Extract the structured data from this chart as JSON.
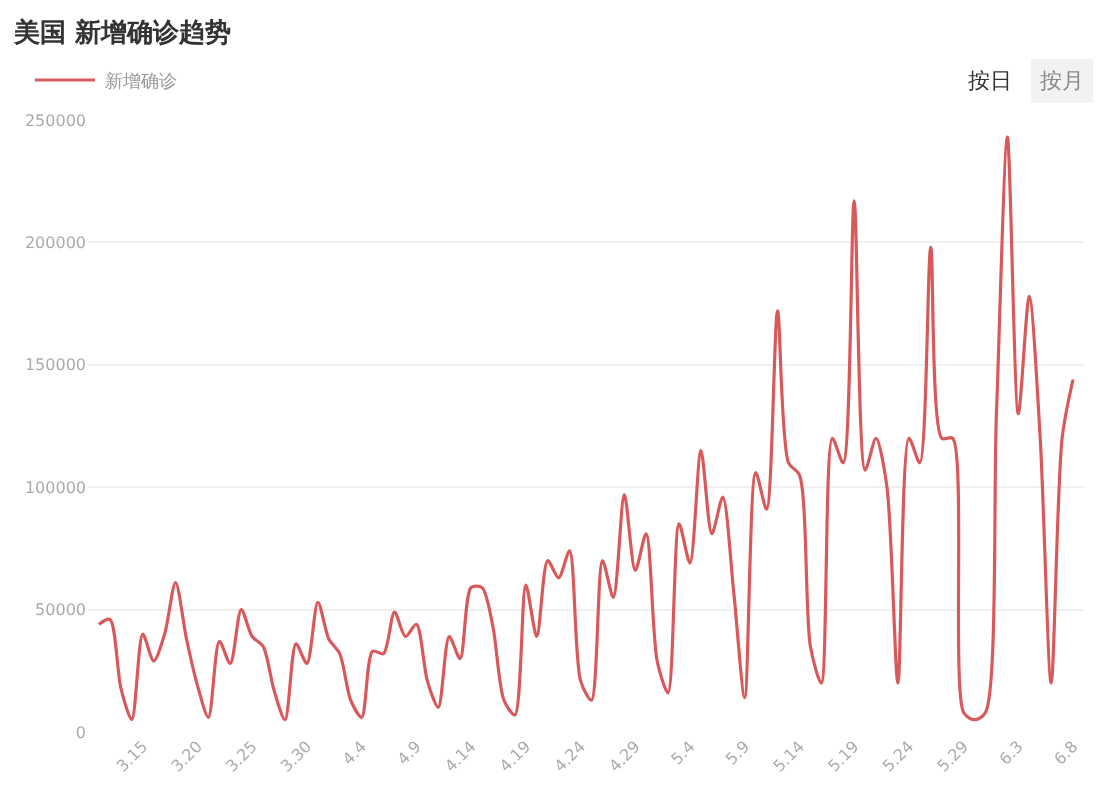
{
  "chart_data": {
    "type": "line",
    "title": "美国 新增确诊趋势",
    "x": [
      "--03-11",
      "--03-12",
      "--03-13",
      "--03-14",
      "--03-15",
      "--03-16",
      "--03-17",
      "--03-18",
      "--03-19",
      "--03-20",
      "--03-21",
      "--03-22",
      "--03-23",
      "--03-24",
      "--03-25",
      "--03-26",
      "--03-27",
      "--03-28",
      "--03-29",
      "--03-30",
      "--03-31",
      "--04-01",
      "--04-02",
      "--04-03",
      "--04-04",
      "--04-05",
      "--04-06",
      "--04-07",
      "--04-08",
      "--04-09",
      "--04-10",
      "--04-11",
      "--04-12",
      "--04-13",
      "--04-14",
      "--04-15",
      "--04-16",
      "--04-17",
      "--04-18",
      "--04-19",
      "--04-20",
      "--04-21",
      "--04-22",
      "--04-23",
      "--04-24",
      "--04-25",
      "--04-26",
      "--04-27",
      "--04-28",
      "--04-29",
      "--04-30",
      "--05-01",
      "--05-02",
      "--05-03",
      "--05-04",
      "--05-05",
      "--05-06",
      "--05-07",
      "--05-08",
      "--05-09",
      "--05-10",
      "--05-11",
      "--05-12",
      "--05-13",
      "--05-14",
      "--05-15",
      "--05-16",
      "--05-17",
      "--05-18",
      "--05-19",
      "--05-20",
      "--05-21",
      "--05-22",
      "--05-23",
      "--05-24",
      "--05-25",
      "--05-26",
      "--05-27",
      "--05-28",
      "--05-29",
      "--05-30",
      "--05-31",
      "--06-01",
      "--06-02",
      "--06-03",
      "--06-04",
      "--06-05",
      "--06-06",
      "--06-07",
      "--06-08"
    ],
    "series": [
      {
        "name": "新增确诊",
        "color": "#d9595b",
        "values": [
          44000,
          46000,
          18000,
          5000,
          40000,
          29000,
          40000,
          61000,
          38000,
          19000,
          6000,
          37000,
          28000,
          50000,
          39000,
          35000,
          17000,
          5000,
          36000,
          28000,
          53000,
          38000,
          32000,
          13000,
          6000,
          33000,
          32000,
          49000,
          39000,
          44000,
          21000,
          10000,
          39000,
          30000,
          59000,
          59000,
          43000,
          13000,
          7000,
          60000,
          39000,
          70000,
          63000,
          74000,
          21000,
          13000,
          70000,
          55000,
          97000,
          66000,
          81000,
          29000,
          16000,
          85000,
          69000,
          115000,
          81000,
          96000,
          57000,
          14000,
          106000,
          91000,
          172000,
          110000,
          105000,
          35000,
          20000,
          120000,
          110000,
          217000,
          107000,
          120000,
          100000,
          20000,
          120000,
          110000,
          198000,
          120000,
          120000,
          8000,
          5000,
          8000,
          130000,
          243000,
          130000,
          178000,
          120000,
          20000,
          120000,
          144000
        ]
      }
    ],
    "xlim": [
      "--03-10",
      "--06-09"
    ],
    "xticks": [
      {
        "value": "--03-15",
        "label": "3.15"
      },
      {
        "value": "--03-20",
        "label": "3.20"
      },
      {
        "value": "--03-25",
        "label": "3.25"
      },
      {
        "value": "--03-30",
        "label": "3.30"
      },
      {
        "value": "--04-04",
        "label": "4.4"
      },
      {
        "value": "--04-09",
        "label": "4.9"
      },
      {
        "value": "--04-14",
        "label": "4.14"
      },
      {
        "value": "--04-19",
        "label": "4.19"
      },
      {
        "value": "--04-24",
        "label": "4.24"
      },
      {
        "value": "--04-29",
        "label": "4.29"
      },
      {
        "value": "--05-04",
        "label": "5.4"
      },
      {
        "value": "--05-09",
        "label": "5.9"
      },
      {
        "value": "--05-14",
        "label": "5.14"
      },
      {
        "value": "--05-19",
        "label": "5.19"
      },
      {
        "value": "--05-24",
        "label": "5.24"
      },
      {
        "value": "--05-29",
        "label": "5.29"
      },
      {
        "value": "--06-03",
        "label": "6.3"
      },
      {
        "value": "--06-08",
        "label": "6.8"
      }
    ],
    "ylim": [
      0,
      250000
    ],
    "yticks": [
      0,
      50000,
      100000,
      150000,
      200000,
      250000
    ],
    "grid": "y",
    "legend": "top left",
    "line_style": "solid",
    "annotations": [
      "按日",
      "按月"
    ]
  }
}
